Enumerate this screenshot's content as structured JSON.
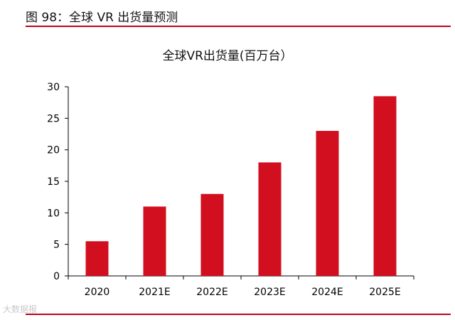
{
  "figure": {
    "title": "图 98：全球 VR 出货量预测"
  },
  "watermark": "大数据报",
  "chart_data": {
    "type": "bar",
    "title": "全球VR出货量(百万台）",
    "categories": [
      "2020",
      "2021E",
      "2022E",
      "2023E",
      "2024E",
      "2025E"
    ],
    "values": [
      5.5,
      11,
      13,
      18,
      23,
      28.5
    ],
    "ylim": [
      0,
      30
    ],
    "yticks": [
      0,
      5,
      10,
      15,
      20,
      25,
      30
    ],
    "xlabel": "",
    "ylabel": "",
    "grid": false,
    "colors": {
      "bar": "#d20f1f",
      "axis": "#000000",
      "rule": "#c0001a"
    }
  }
}
